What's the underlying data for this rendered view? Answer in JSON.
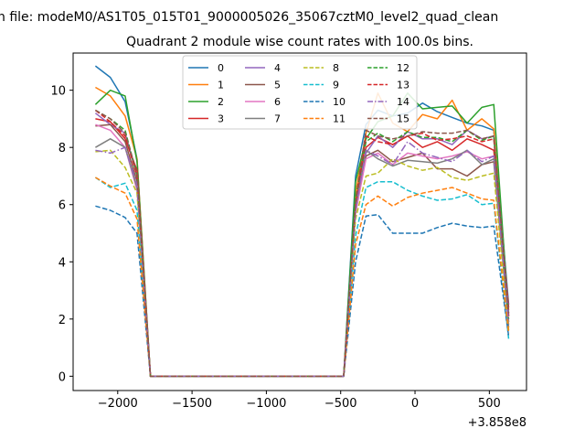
{
  "chart_data": {
    "type": "line",
    "suptitle": "n file: modeM0/AS1T05_015T01_9000005026_35067cztM0_level2_quad_clean",
    "title": "Quadrant 2 module wise count rates with 100.0s bins.",
    "offset_label": "+3.858e8",
    "xlim": [
      -2300,
      750
    ],
    "ylim": [
      -0.5,
      11.3
    ],
    "xticks": [
      -2000,
      -1500,
      -1000,
      -500,
      0,
      500
    ],
    "xtick_labels": [
      "−2000",
      "−1500",
      "−1000",
      "−500",
      "0",
      "500"
    ],
    "yticks": [
      0,
      2,
      4,
      6,
      8,
      10
    ],
    "ytick_labels": [
      "0",
      "2",
      "4",
      "6",
      "8",
      "10"
    ],
    "legend_position": "top-center",
    "x": [
      -2150,
      -2050,
      -1950,
      -1870,
      -1780,
      -480,
      -400,
      -330,
      -250,
      -150,
      -50,
      50,
      150,
      250,
      350,
      450,
      530,
      630
    ],
    "series": [
      {
        "name": "0",
        "color": "#1f77b4",
        "dash": "solid",
        "values": [
          10.85,
          10.45,
          9.6,
          7.6,
          0,
          0,
          7.0,
          8.8,
          9.3,
          9.1,
          9.2,
          9.55,
          9.25,
          9.05,
          8.85,
          8.75,
          8.6,
          2.5
        ]
      },
      {
        "name": "1",
        "color": "#ff7f0e",
        "dash": "solid",
        "values": [
          10.1,
          9.8,
          9.1,
          7.6,
          0,
          0,
          6.4,
          8.5,
          9.9,
          8.85,
          8.55,
          9.15,
          9.0,
          9.65,
          8.6,
          9.0,
          8.65,
          2.3
        ]
      },
      {
        "name": "2",
        "color": "#2ca02c",
        "dash": "solid",
        "values": [
          9.5,
          10.0,
          9.8,
          7.5,
          0,
          0,
          6.8,
          8.3,
          8.9,
          9.1,
          9.9,
          9.35,
          9.4,
          9.45,
          8.85,
          9.4,
          9.5,
          2.1
        ]
      },
      {
        "name": "3",
        "color": "#d62728",
        "dash": "solid",
        "values": [
          9.0,
          8.9,
          8.3,
          7.2,
          0,
          0,
          6.0,
          8.0,
          8.35,
          8.1,
          8.4,
          8.0,
          8.2,
          7.9,
          8.3,
          8.1,
          7.9,
          2.4
        ]
      },
      {
        "name": "4",
        "color": "#9467bd",
        "dash": "solid",
        "values": [
          9.2,
          8.8,
          8.5,
          7.0,
          0,
          0,
          5.8,
          7.8,
          8.4,
          8.0,
          8.55,
          8.3,
          8.3,
          8.1,
          8.6,
          8.3,
          8.4,
          2.2
        ]
      },
      {
        "name": "5",
        "color": "#8c564b",
        "dash": "solid",
        "values": [
          8.75,
          8.8,
          8.2,
          6.8,
          0,
          0,
          5.9,
          7.7,
          7.9,
          7.5,
          7.65,
          7.8,
          7.25,
          7.25,
          7.0,
          7.4,
          7.5,
          1.9
        ]
      },
      {
        "name": "6",
        "color": "#e377c2",
        "dash": "solid",
        "values": [
          8.8,
          8.6,
          8.0,
          6.5,
          0,
          0,
          5.7,
          7.6,
          7.8,
          7.4,
          7.8,
          7.7,
          7.6,
          7.7,
          7.85,
          7.6,
          7.7,
          1.8
        ]
      },
      {
        "name": "7",
        "color": "#7f7f7f",
        "dash": "solid",
        "values": [
          8.0,
          8.3,
          8.0,
          6.6,
          0,
          0,
          5.9,
          7.9,
          7.6,
          7.35,
          7.55,
          7.5,
          7.45,
          7.6,
          7.9,
          7.4,
          7.6,
          1.7
        ]
      },
      {
        "name": "8",
        "color": "#bcbd22",
        "dash": "dashed",
        "values": [
          7.85,
          7.9,
          7.3,
          6.4,
          0,
          0,
          5.5,
          7.0,
          7.1,
          7.6,
          7.35,
          7.2,
          7.3,
          6.95,
          6.85,
          7.0,
          7.1,
          1.6
        ]
      },
      {
        "name": "9",
        "color": "#17becf",
        "dash": "dashed",
        "values": [
          6.95,
          6.6,
          6.75,
          5.8,
          0,
          0,
          4.9,
          6.6,
          6.8,
          6.8,
          6.5,
          6.3,
          6.15,
          6.2,
          6.35,
          6.0,
          6.05,
          1.3
        ]
      },
      {
        "name": "10",
        "color": "#1f77b4",
        "dash": "dashed",
        "values": [
          5.95,
          5.8,
          5.55,
          5.0,
          0,
          0,
          4.0,
          5.6,
          5.65,
          5.0,
          5.0,
          5.0,
          5.2,
          5.35,
          5.25,
          5.2,
          5.25,
          1.4
        ]
      },
      {
        "name": "11",
        "color": "#ff7f0e",
        "dash": "dashed",
        "values": [
          6.95,
          6.65,
          6.4,
          5.5,
          0,
          0,
          4.6,
          6.0,
          6.3,
          5.95,
          6.25,
          6.4,
          6.5,
          6.6,
          6.4,
          6.2,
          6.15,
          1.5
        ]
      },
      {
        "name": "12",
        "color": "#2ca02c",
        "dash": "dashed",
        "values": [
          9.3,
          9.0,
          8.6,
          7.0,
          0,
          0,
          6.2,
          8.2,
          8.5,
          8.2,
          8.55,
          8.35,
          8.35,
          8.2,
          8.6,
          8.25,
          8.4,
          2.0
        ]
      },
      {
        "name": "13",
        "color": "#d62728",
        "dash": "dashed",
        "values": [
          9.3,
          8.9,
          8.4,
          7.0,
          0,
          0,
          6.0,
          8.4,
          8.2,
          8.1,
          8.4,
          8.5,
          8.25,
          8.3,
          8.4,
          8.2,
          8.3,
          2.1
        ]
      },
      {
        "name": "14",
        "color": "#9467bd",
        "dash": "dashdot",
        "values": [
          7.9,
          7.8,
          8.0,
          6.7,
          0,
          0,
          5.8,
          7.9,
          7.7,
          7.4,
          8.2,
          7.8,
          7.65,
          7.5,
          7.9,
          7.5,
          7.7,
          1.9
        ]
      },
      {
        "name": "15",
        "color": "#8c564b",
        "dash": "dashed",
        "values": [
          9.3,
          9.0,
          8.5,
          7.1,
          0,
          0,
          6.1,
          8.6,
          8.4,
          8.3,
          8.4,
          8.55,
          8.5,
          8.5,
          8.6,
          8.3,
          8.4,
          2.2
        ]
      }
    ]
  }
}
